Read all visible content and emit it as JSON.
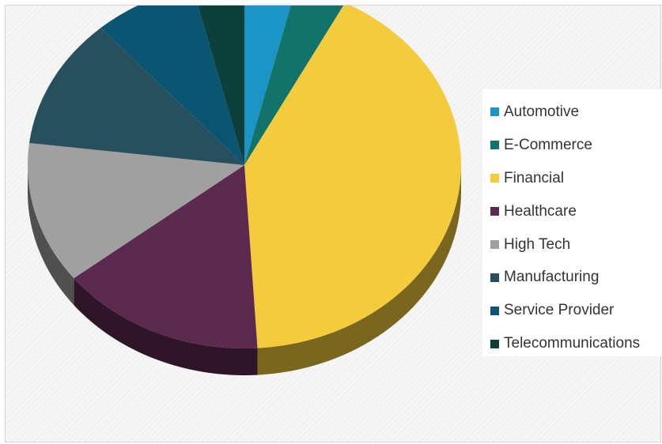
{
  "chart_data": {
    "type": "pie",
    "title": "",
    "style": "3d",
    "legend_position": "right",
    "start_angle_deg": 0,
    "direction": "clockwise",
    "categories": [
      "Automotive",
      "E-Commerce",
      "Financial",
      "Healthcare",
      "High Tech",
      "Manufacturing",
      "Service Provider",
      "Telecommunications"
    ],
    "values": [
      4,
      4,
      43,
      16,
      13,
      12,
      8,
      4
    ],
    "colors": [
      "#1a95c5",
      "#12736b",
      "#f4cb3d",
      "#5c2a4e",
      "#a0a0a0",
      "#274f5d",
      "#0b5573",
      "#0d403a"
    ]
  }
}
